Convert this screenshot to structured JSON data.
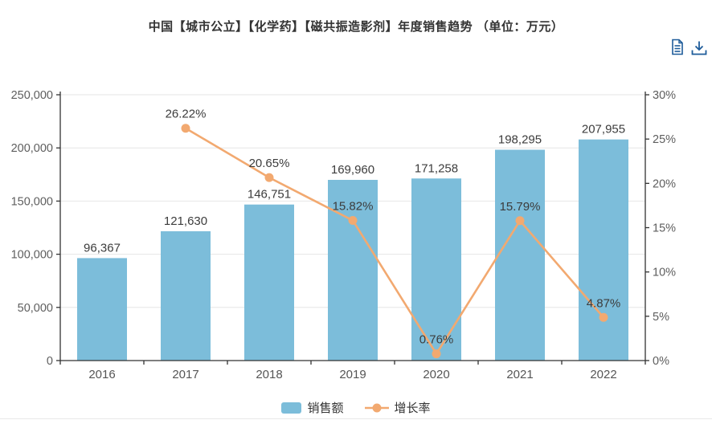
{
  "chart_data": {
    "type": "combo",
    "title": "中国【城市公立】【化学药】【磁共振造影剂】年度销售趋势 （单位：万元）",
    "categories": [
      "2016",
      "2017",
      "2018",
      "2019",
      "2020",
      "2021",
      "2022"
    ],
    "series": [
      {
        "name": "销售额",
        "type": "bar",
        "axis": "left",
        "color": "#7cbdda",
        "values": [
          96367,
          121630,
          146751,
          169960,
          171258,
          198295,
          207955
        ],
        "labels": [
          "96,367",
          "121,630",
          "146,751",
          "169,960",
          "171,258",
          "198,295",
          "207,955"
        ]
      },
      {
        "name": "增长率",
        "type": "line",
        "axis": "right",
        "color": "#f2a970",
        "values": [
          null,
          26.22,
          20.65,
          15.82,
          0.76,
          15.79,
          4.87
        ],
        "labels": [
          null,
          "26.22%",
          "20.65%",
          "15.82%",
          "0.76%",
          "15.79%",
          "4.87%"
        ]
      }
    ],
    "left_axis": {
      "min": 0,
      "max": 250000,
      "interval": 50000,
      "tick_labels": [
        "0",
        "50,000",
        "100,000",
        "150,000",
        "200,000",
        "250,000"
      ]
    },
    "right_axis": {
      "min": 0,
      "max": 30,
      "interval": 5,
      "suffix": "%",
      "tick_labels": [
        "0%",
        "5%",
        "10%",
        "15%",
        "20%",
        "25%",
        "30%"
      ]
    },
    "grid": true,
    "legend_position": "bottom"
  },
  "toolbar": {
    "icons": [
      "data-view-icon",
      "download-icon"
    ],
    "icon_color": "#1e5c9a"
  },
  "colors": {
    "axis_line": "#333333",
    "grid_line": "#e6e6e6",
    "title_text": "#333333"
  }
}
